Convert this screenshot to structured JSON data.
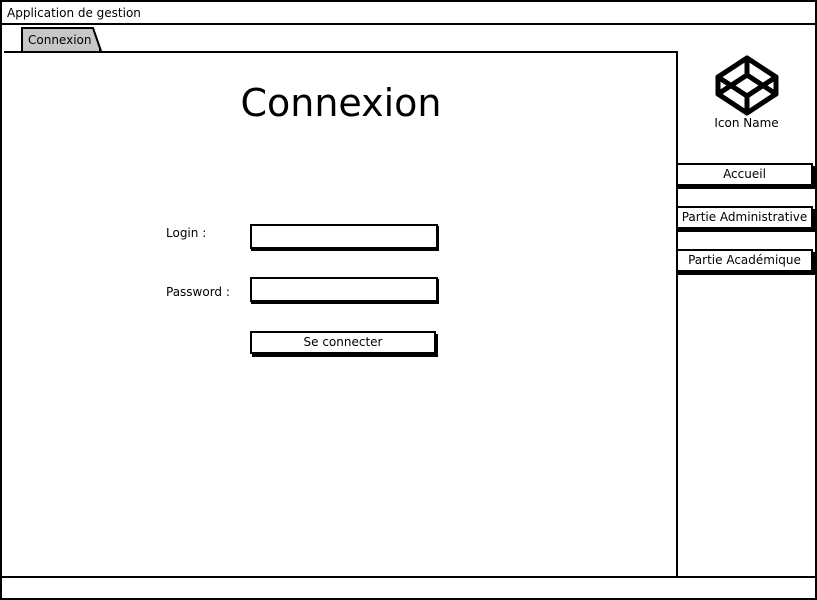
{
  "window": {
    "title": "Application de gestion"
  },
  "tabs": [
    {
      "label": "Connexion",
      "active": true
    }
  ],
  "main": {
    "title": "Connexion",
    "login_label": "Login :",
    "login_value": "",
    "password_label": "Password :",
    "password_value": "",
    "submit_label": "Se connecter"
  },
  "sidebar": {
    "logo_icon": "codepen-cube-icon",
    "icon_label": "Icon Name",
    "items": [
      {
        "label": "Accueil"
      },
      {
        "label": "Partie Administrative"
      },
      {
        "label": "Partie Académique"
      }
    ]
  },
  "colors": {
    "tab_active": "#c7c7c7",
    "border": "#000000",
    "background": "#ffffff"
  }
}
